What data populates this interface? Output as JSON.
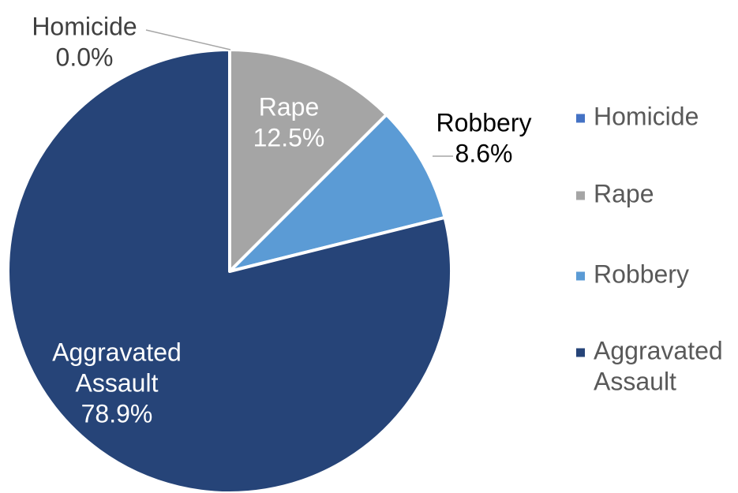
{
  "chart_data": {
    "type": "pie",
    "title": "",
    "categories": [
      "Homicide",
      "Rape",
      "Robbery",
      "Aggravated Assault"
    ],
    "values": [
      0.0,
      12.5,
      8.6,
      78.9
    ],
    "value_labels": [
      "0.0%",
      "12.5%",
      "8.6%",
      "78.9%"
    ],
    "label_lines": {
      "Homicide": [
        "Homicide"
      ],
      "Rape": [
        "Rape"
      ],
      "Robbery": [
        "Robbery"
      ],
      "Aggravated Assault": [
        "Aggravated",
        "Assault"
      ]
    },
    "colors": [
      "#4472c4",
      "#a5a5a5",
      "#5b9bd5",
      "#264478"
    ],
    "label_colors": [
      "#404040",
      "#ffffff",
      "#000000",
      "#ffffff"
    ],
    "start_angle_deg": 0,
    "direction": "clockwise",
    "legend": {
      "position": "right",
      "entries": [
        {
          "name": "Homicide",
          "lines": [
            "Homicide"
          ]
        },
        {
          "name": "Rape",
          "lines": [
            "Rape"
          ]
        },
        {
          "name": "Robbery",
          "lines": [
            "Robbery"
          ]
        },
        {
          "name": "Aggravated Assault",
          "lines": [
            "Aggravated",
            "Assault"
          ]
        }
      ]
    }
  }
}
